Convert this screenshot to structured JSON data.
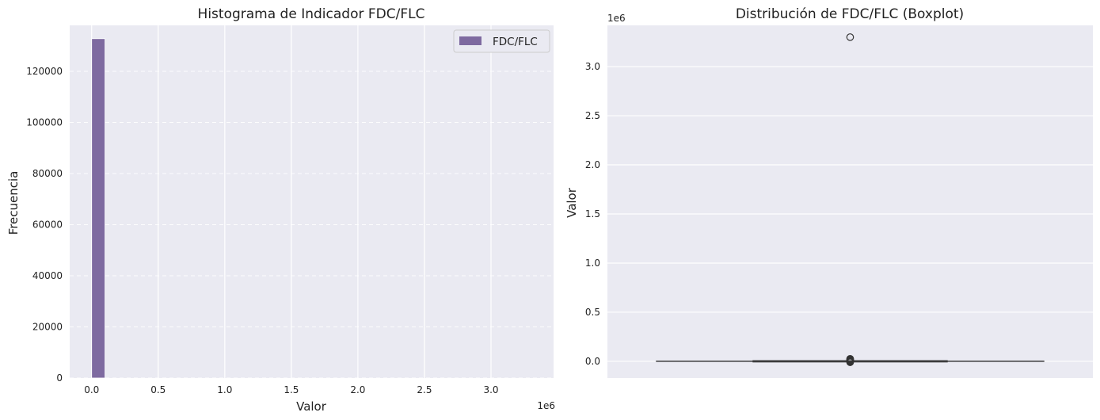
{
  "colors": {
    "panel_bg": "#eaeaf2",
    "grid": "#ffffff",
    "bar": "#7e6aa0",
    "box_line": "#3c3c3c",
    "text": "#222222"
  },
  "chart_data": [
    {
      "type": "bar",
      "title": "Histograma de Indicador FDC/FLC",
      "xlabel": "Valor",
      "ylabel": "Frecuencia",
      "x_offset_label": "1e6",
      "xlim": [
        -0.165,
        3.47
      ],
      "ylim": [
        0,
        138000
      ],
      "x_ticks": [
        0.0,
        0.5,
        1.0,
        1.5,
        2.0,
        2.5,
        3.0
      ],
      "x_tick_labels": [
        "0.0",
        "0.5",
        "1.0",
        "1.5",
        "2.0",
        "2.5",
        "3.0"
      ],
      "y_ticks": [
        0,
        20000,
        40000,
        60000,
        80000,
        100000,
        120000
      ],
      "y_tick_labels": [
        "0",
        "20000",
        "40000",
        "60000",
        "80000",
        "100000",
        "120000"
      ],
      "bin_width": 0.1,
      "bins": [
        {
          "start": 0.0,
          "end": 0.1,
          "count": 132800
        }
      ],
      "legend": {
        "label": "FDC/FLC",
        "position": "top-right"
      },
      "grid": true
    },
    {
      "type": "boxplot",
      "title": "Distribución de FDC/FLC (Boxplot)",
      "xlabel": "",
      "ylabel": "Valor",
      "y_offset_label": "1e6",
      "ylim": [
        -0.17,
        3.42
      ],
      "y_ticks": [
        0.0,
        0.5,
        1.0,
        1.5,
        2.0,
        2.5,
        3.0
      ],
      "y_tick_labels": [
        "0.0",
        "0.5",
        "1.0",
        "1.5",
        "2.0",
        "2.5",
        "3.0"
      ],
      "box": {
        "q1": 0.0,
        "median": 0.0,
        "q3": 0.0,
        "whisker_low": 0.0,
        "whisker_high": 0.0
      },
      "outliers": [
        3.3,
        0.025,
        0.018,
        0.012,
        0.006,
        0.0,
        -0.005,
        -0.01
      ],
      "grid": true
    }
  ]
}
